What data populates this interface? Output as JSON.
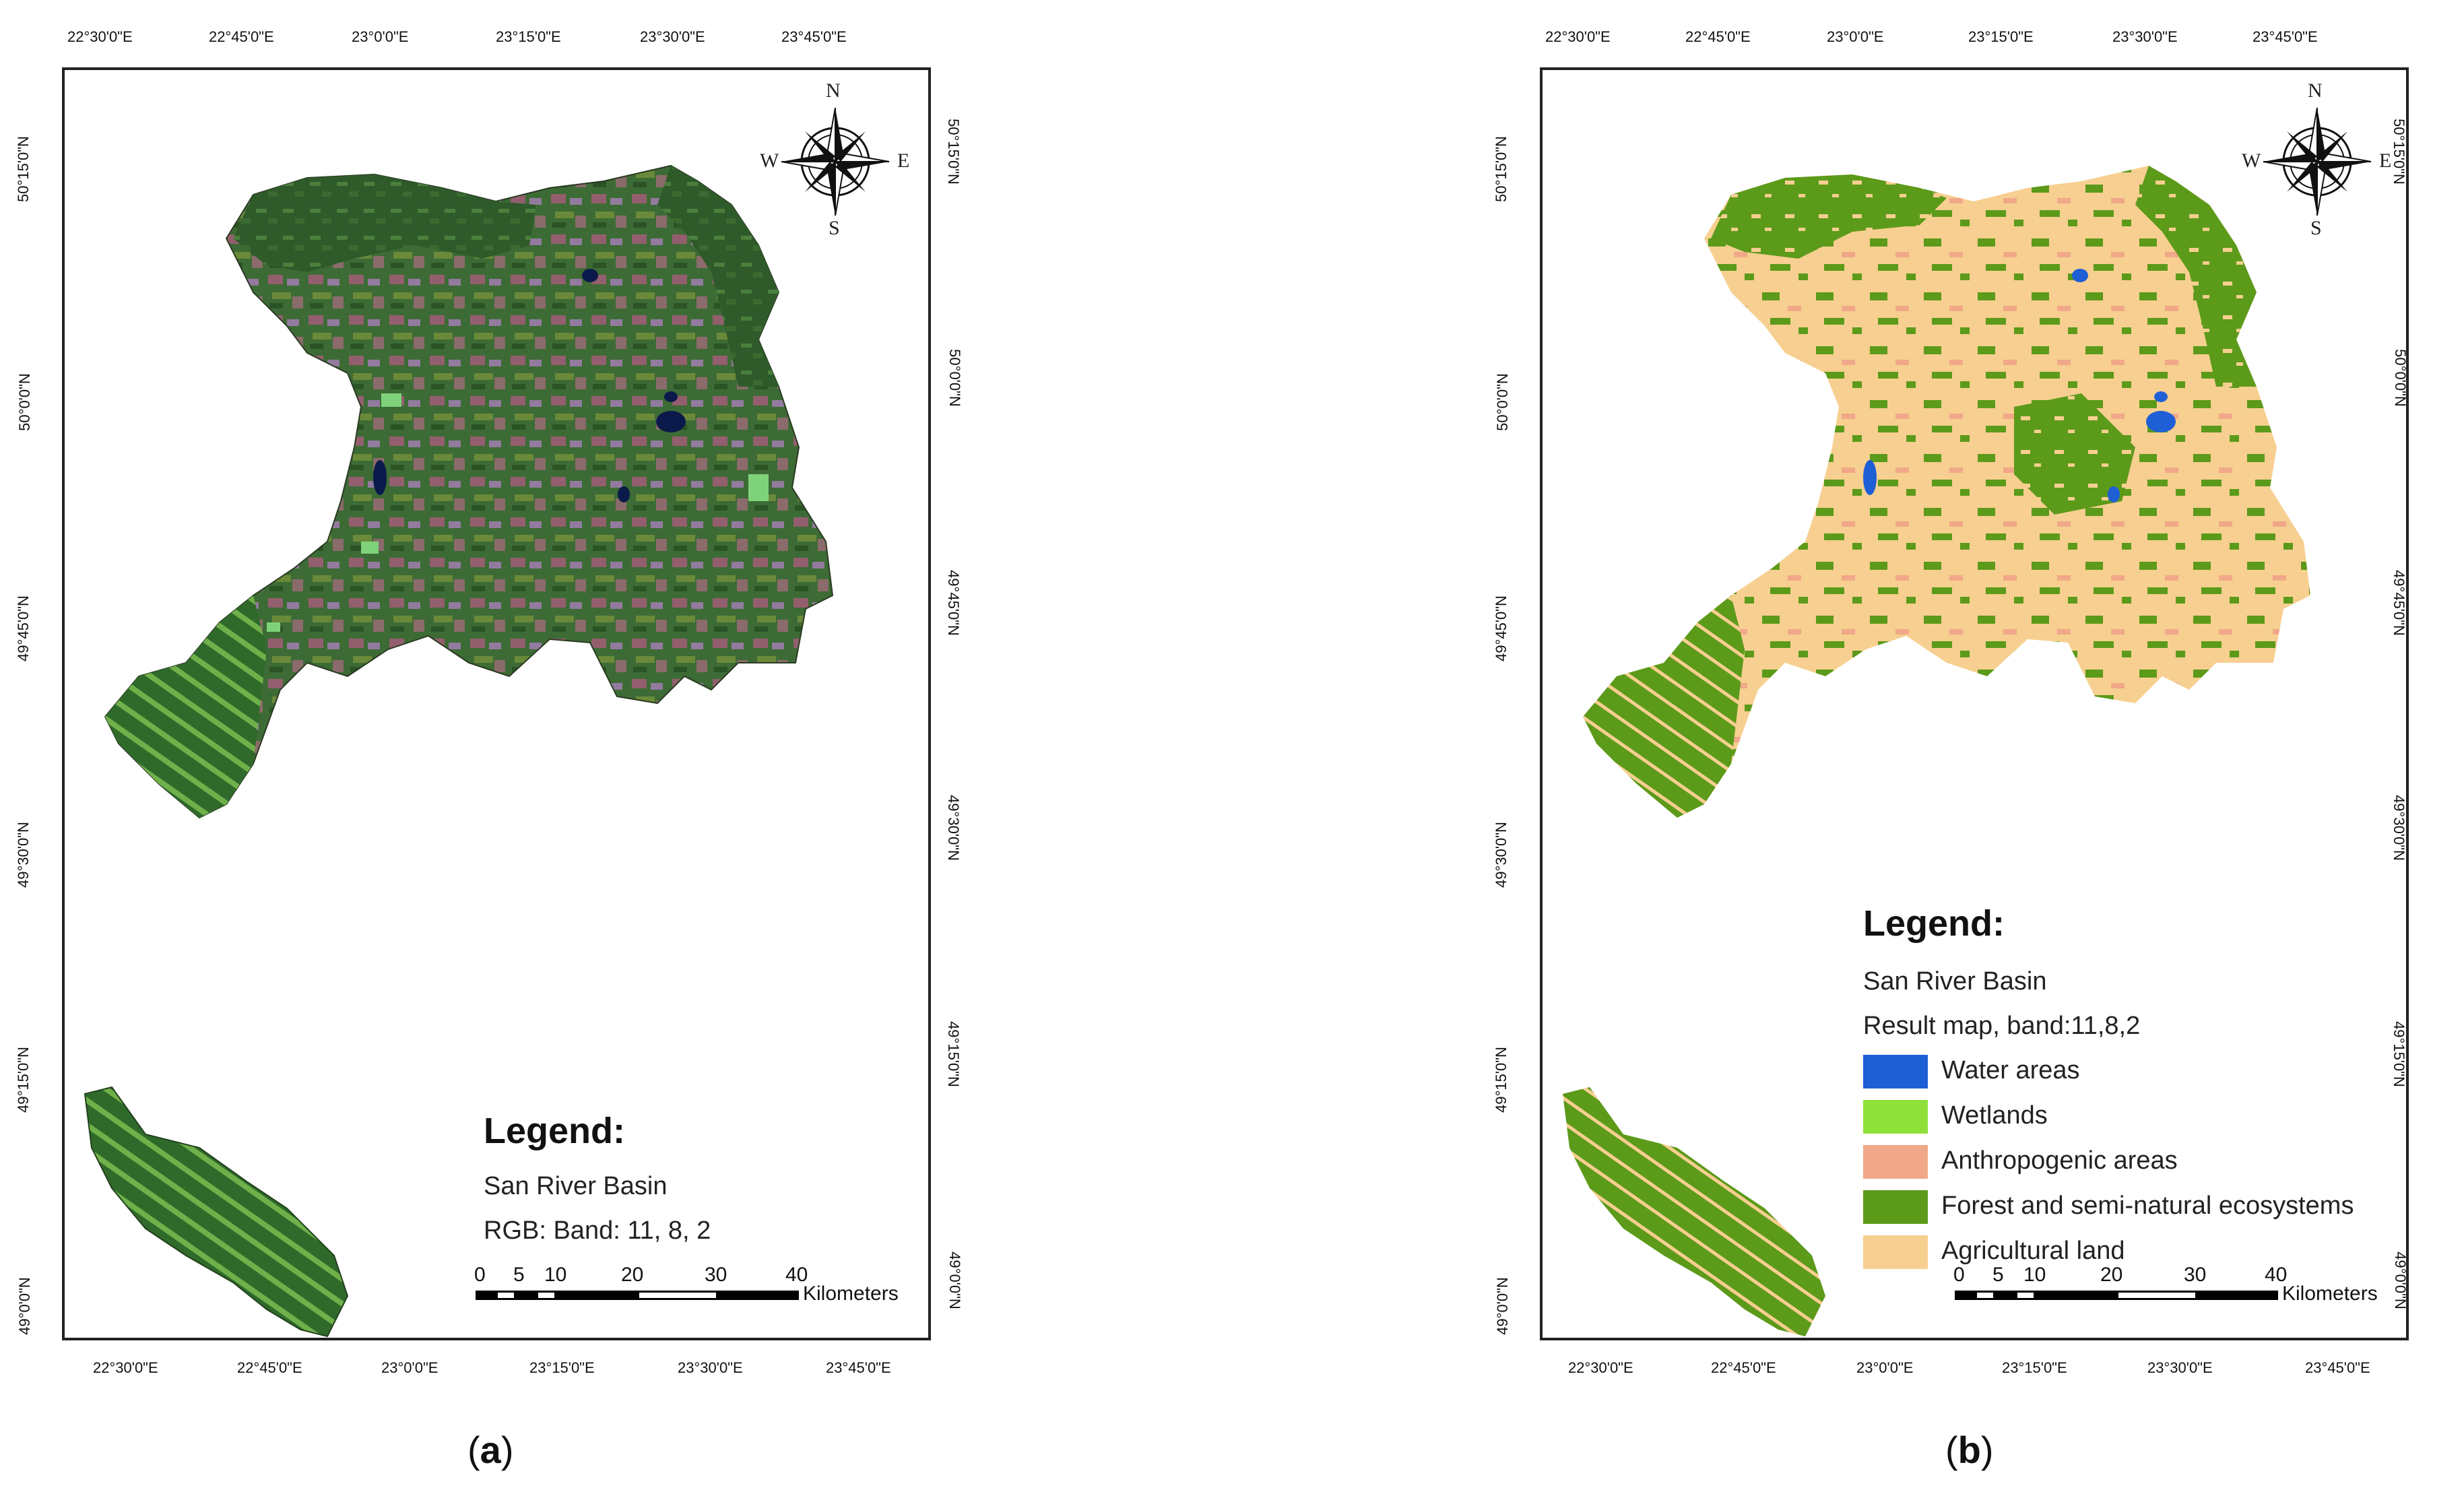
{
  "captions": {
    "a": "a",
    "b": "b"
  },
  "axes": {
    "top_lon": [
      "22°30'0\"E",
      "22°45'0\"E",
      "23°0'0\"E",
      "23°15'0\"E",
      "23°30'0\"E",
      "23°45'0\"E"
    ],
    "bottom_lon": [
      "22°30'0\"E",
      "22°45'0\"E",
      "23°0'0\"E",
      "23°15'0\"E",
      "23°30'0\"E",
      "23°45'0\"E"
    ],
    "lat": [
      "50°15'0\"N",
      "50°0'0\"N",
      "49°45'0\"N",
      "49°30'0\"N",
      "49°15'0\"N",
      "49°0'0\"N"
    ]
  },
  "compass": {
    "n": "N",
    "s": "S",
    "e": "E",
    "w": "W"
  },
  "panel_a": {
    "legend_title": "Legend:",
    "line1": "San River Basin",
    "line2": "RGB: Band: 11, 8, 2",
    "imagery_colors": {
      "forest": "#3d6b35",
      "pink": "#b85a86",
      "violet": "#a880b8",
      "water": "#0b1a4a",
      "light_green": "#7ed37a"
    }
  },
  "panel_b": {
    "legend_title": "Legend:",
    "line1": "San River Basin",
    "line2": "Result map, band:11,8,2",
    "categories": [
      {
        "label": "Water areas",
        "color": "#1f5fd6"
      },
      {
        "label": "Wetlands",
        "color": "#8fe03a"
      },
      {
        "label": "Anthropogenic areas",
        "color": "#f0a888"
      },
      {
        "label": "Forest and semi-natural ecosystems",
        "color": "#5c9a1a"
      },
      {
        "label": "Agricultural land",
        "color": "#f7cf90"
      }
    ]
  },
  "scalebar": {
    "labels": [
      "0",
      "5",
      "10",
      "20",
      "30",
      "40"
    ],
    "unit": "Kilometers"
  }
}
